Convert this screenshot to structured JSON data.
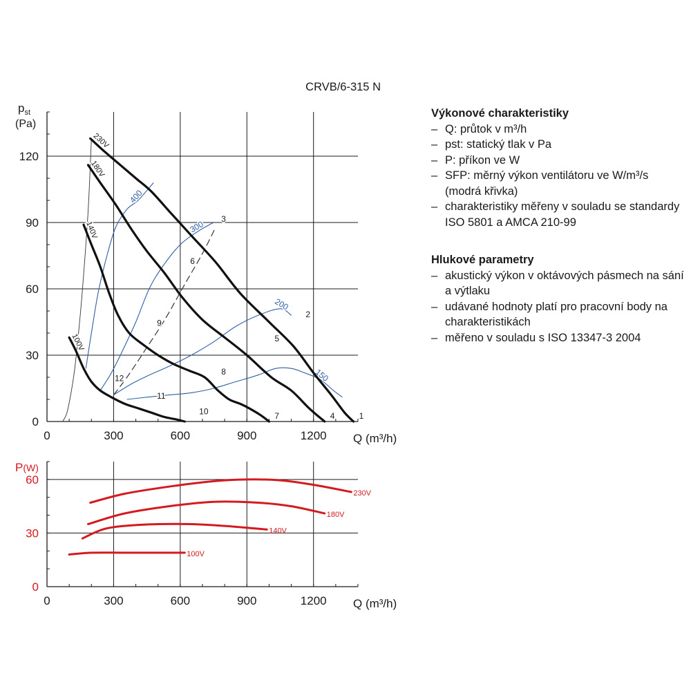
{
  "model_title": "CRVB/6-315 N",
  "performance_legend": {
    "heading": "Výkonové charakteristiky",
    "items": [
      "Q: průtok v m³/h",
      "pst: statický tlak v Pa",
      "P: příkon ve W",
      "SFP: měrný výkon ventilátoru ve W/m³/s (modrá křivka)",
      "charakteristiky měřeny v souladu se standardy ISO 5801 a AMCA 210-99"
    ]
  },
  "noise_legend": {
    "heading": "Hlukové parametry",
    "items": [
      "akustický výkon v oktávových pásmech na sání a výtlaku",
      "udávané hodnoty platí pro pracovní body na charakteristikách",
      "měřeno v souladu s ISO 13347-3 2004"
    ]
  },
  "chart_data": [
    {
      "type": "line",
      "title": "CRVB/6-315 N",
      "ylabel": "pst (Pa)",
      "xlabel": "Q (m³/h)",
      "xlim": [
        0,
        1400
      ],
      "ylim": [
        0,
        140
      ],
      "xticks": [
        0,
        300,
        600,
        900,
        1200
      ],
      "yticks": [
        0,
        30,
        60,
        90,
        120
      ],
      "grid": true,
      "colors": {
        "fan": "#111111",
        "sfp": "#2f5fa7",
        "system": "#333333"
      },
      "series": [
        {
          "name": "230V",
          "kind": "fan",
          "x": [
            195,
            260,
            330,
            400,
            470,
            560,
            660,
            760,
            870,
            1000,
            1110,
            1200,
            1280,
            1340,
            1380
          ],
          "y": [
            128,
            122,
            116,
            110,
            104,
            94,
            83,
            72,
            58,
            45,
            34,
            22,
            12,
            4,
            0
          ]
        },
        {
          "name": "180V",
          "kind": "fan",
          "x": [
            185,
            240,
            310,
            380,
            450,
            530,
            610,
            700,
            800,
            900,
            1010,
            1100,
            1180,
            1250
          ],
          "y": [
            116,
            108,
            98,
            87,
            77,
            67,
            56,
            46,
            38,
            30,
            20,
            14,
            6,
            0
          ]
        },
        {
          "name": "140V",
          "kind": "fan",
          "x": [
            165,
            200,
            240,
            280,
            320,
            370,
            430,
            500,
            570,
            640,
            710,
            770,
            820,
            870,
            910,
            960,
            1000
          ],
          "y": [
            89,
            80,
            70,
            58,
            48,
            40,
            35,
            30,
            26,
            23,
            20,
            14,
            10,
            8,
            6,
            3,
            0
          ]
        },
        {
          "name": "100V",
          "kind": "fan",
          "x": [
            100,
            130,
            165,
            200,
            240,
            290,
            350,
            410,
            470,
            530,
            580,
            620
          ],
          "y": [
            38,
            32,
            24,
            18,
            14,
            11,
            8,
            6,
            4,
            2,
            1,
            0
          ]
        }
      ],
      "sfp_curves": [
        {
          "label": "400",
          "x": [
            175,
            200,
            230,
            270,
            310,
            360,
            410,
            480
          ],
          "y": [
            24,
            40,
            58,
            75,
            88,
            96,
            100,
            108
          ]
        },
        {
          "label": "300",
          "x": [
            240,
            290,
            340,
            400,
            460,
            520,
            600,
            680,
            750
          ],
          "y": [
            14,
            22,
            32,
            45,
            60,
            70,
            80,
            86,
            90
          ]
        },
        {
          "label": "200",
          "x": [
            300,
            380,
            460,
            550,
            650,
            750,
            850,
            950,
            1050,
            1100
          ],
          "y": [
            12,
            17,
            21,
            25,
            30,
            36,
            43,
            48,
            51,
            48
          ]
        },
        {
          "label": "150",
          "x": [
            360,
            450,
            550,
            650,
            750,
            850,
            950,
            1030,
            1100,
            1160,
            1230,
            1290,
            1330
          ],
          "y": [
            10,
            11,
            12,
            13,
            15,
            18,
            21,
            24,
            24,
            22,
            19,
            14,
            11
          ]
        }
      ],
      "system_curves": [
        {
          "x": [
            70,
            90,
            110,
            125,
            140,
            160,
            185,
            200
          ],
          "y": [
            0,
            4,
            14,
            24,
            38,
            60,
            95,
            128
          ],
          "style": "thin solid"
        },
        {
          "x": [
            300,
            360,
            440,
            530,
            620,
            700,
            760
          ],
          "y": [
            12,
            20,
            32,
            46,
            62,
            76,
            88
          ],
          "style": "dashed"
        }
      ],
      "point_labels": [
        {
          "label": "1",
          "x": 1380,
          "y": 0
        },
        {
          "label": "2",
          "x": 1140,
          "y": 46
        },
        {
          "label": "3",
          "x": 760,
          "y": 89
        },
        {
          "label": "4",
          "x": 1250,
          "y": 0
        },
        {
          "label": "5",
          "x": 1000,
          "y": 35
        },
        {
          "label": "6",
          "x": 620,
          "y": 70
        },
        {
          "label": "7",
          "x": 1000,
          "y": 0
        },
        {
          "label": "8",
          "x": 760,
          "y": 20
        },
        {
          "label": "9",
          "x": 470,
          "y": 42
        },
        {
          "label": "10",
          "x": 660,
          "y": 2
        },
        {
          "label": "11",
          "x": 470,
          "y": 9
        },
        {
          "label": "12",
          "x": 280,
          "y": 17
        }
      ]
    },
    {
      "type": "line",
      "ylabel": "P(W)",
      "xlabel": "Q (m³/h)",
      "xlim": [
        0,
        1400
      ],
      "ylim": [
        0,
        70
      ],
      "xticks": [
        0,
        300,
        600,
        900,
        1200
      ],
      "yticks": [
        0,
        30,
        60
      ],
      "grid": true,
      "colors": {
        "line": "#d41a1f",
        "axis_label": "#d41a1f"
      },
      "series": [
        {
          "name": "230V",
          "x": [
            195,
            350,
            550,
            750,
            900,
            1050,
            1200,
            1370
          ],
          "y": [
            47,
            52,
            56,
            59,
            60,
            59.5,
            57,
            53
          ]
        },
        {
          "name": "180V",
          "x": [
            185,
            350,
            550,
            750,
            950,
            1100,
            1250
          ],
          "y": [
            35,
            41,
            45,
            47.5,
            47,
            45,
            41
          ]
        },
        {
          "name": "140V",
          "x": [
            160,
            250,
            350,
            500,
            650,
            800,
            990
          ],
          "y": [
            27,
            32,
            34,
            35,
            35,
            34,
            32
          ]
        },
        {
          "name": "100V",
          "x": [
            100,
            200,
            350,
            500,
            620
          ],
          "y": [
            18,
            19,
            19,
            19,
            19
          ]
        }
      ]
    }
  ]
}
